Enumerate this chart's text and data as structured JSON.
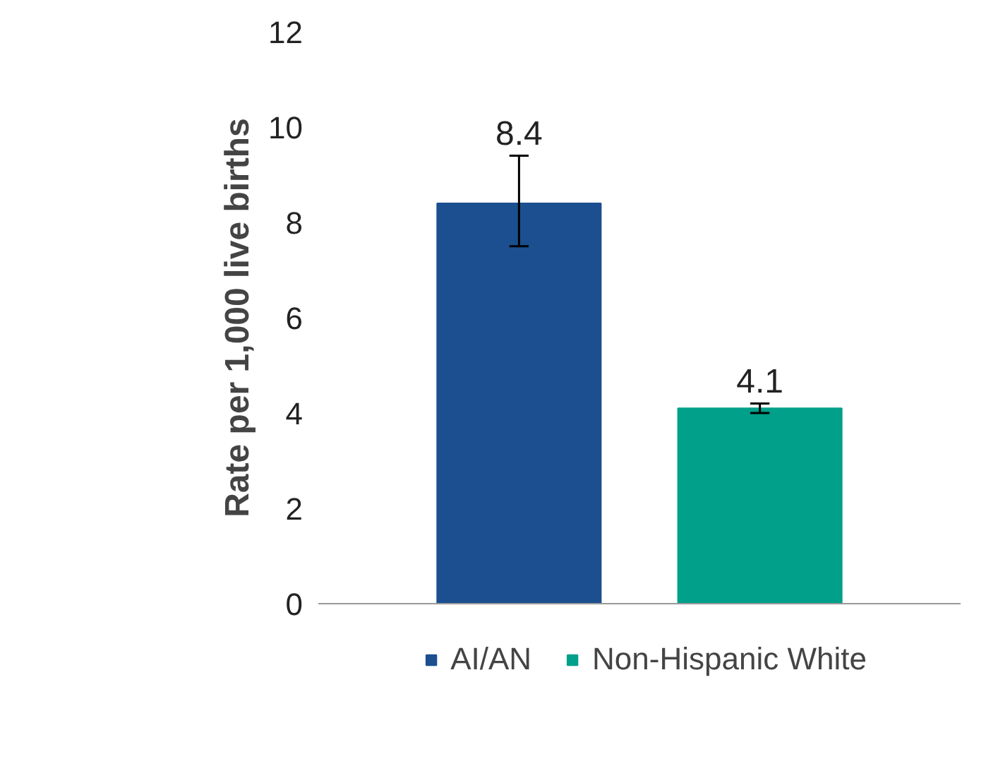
{
  "chart_data": {
    "type": "bar",
    "ylabel": "Rate per 1,000 live births",
    "categories": [
      null
    ],
    "series": [
      {
        "name": "AI/AN",
        "color": "#1b4f8f",
        "values": [
          8.4
        ],
        "errors": [
          [
            7.5,
            9.4
          ]
        ]
      },
      {
        "name": "Non-Hispanic White",
        "color": "#00a08a",
        "values": [
          4.1
        ],
        "errors": [
          [
            4.0,
            4.2
          ]
        ]
      }
    ],
    "ylim": [
      0,
      12
    ],
    "yticks": [
      0,
      2,
      4,
      6,
      8,
      10,
      12
    ],
    "data_labels": true,
    "grid": false,
    "legend": "bottom"
  }
}
